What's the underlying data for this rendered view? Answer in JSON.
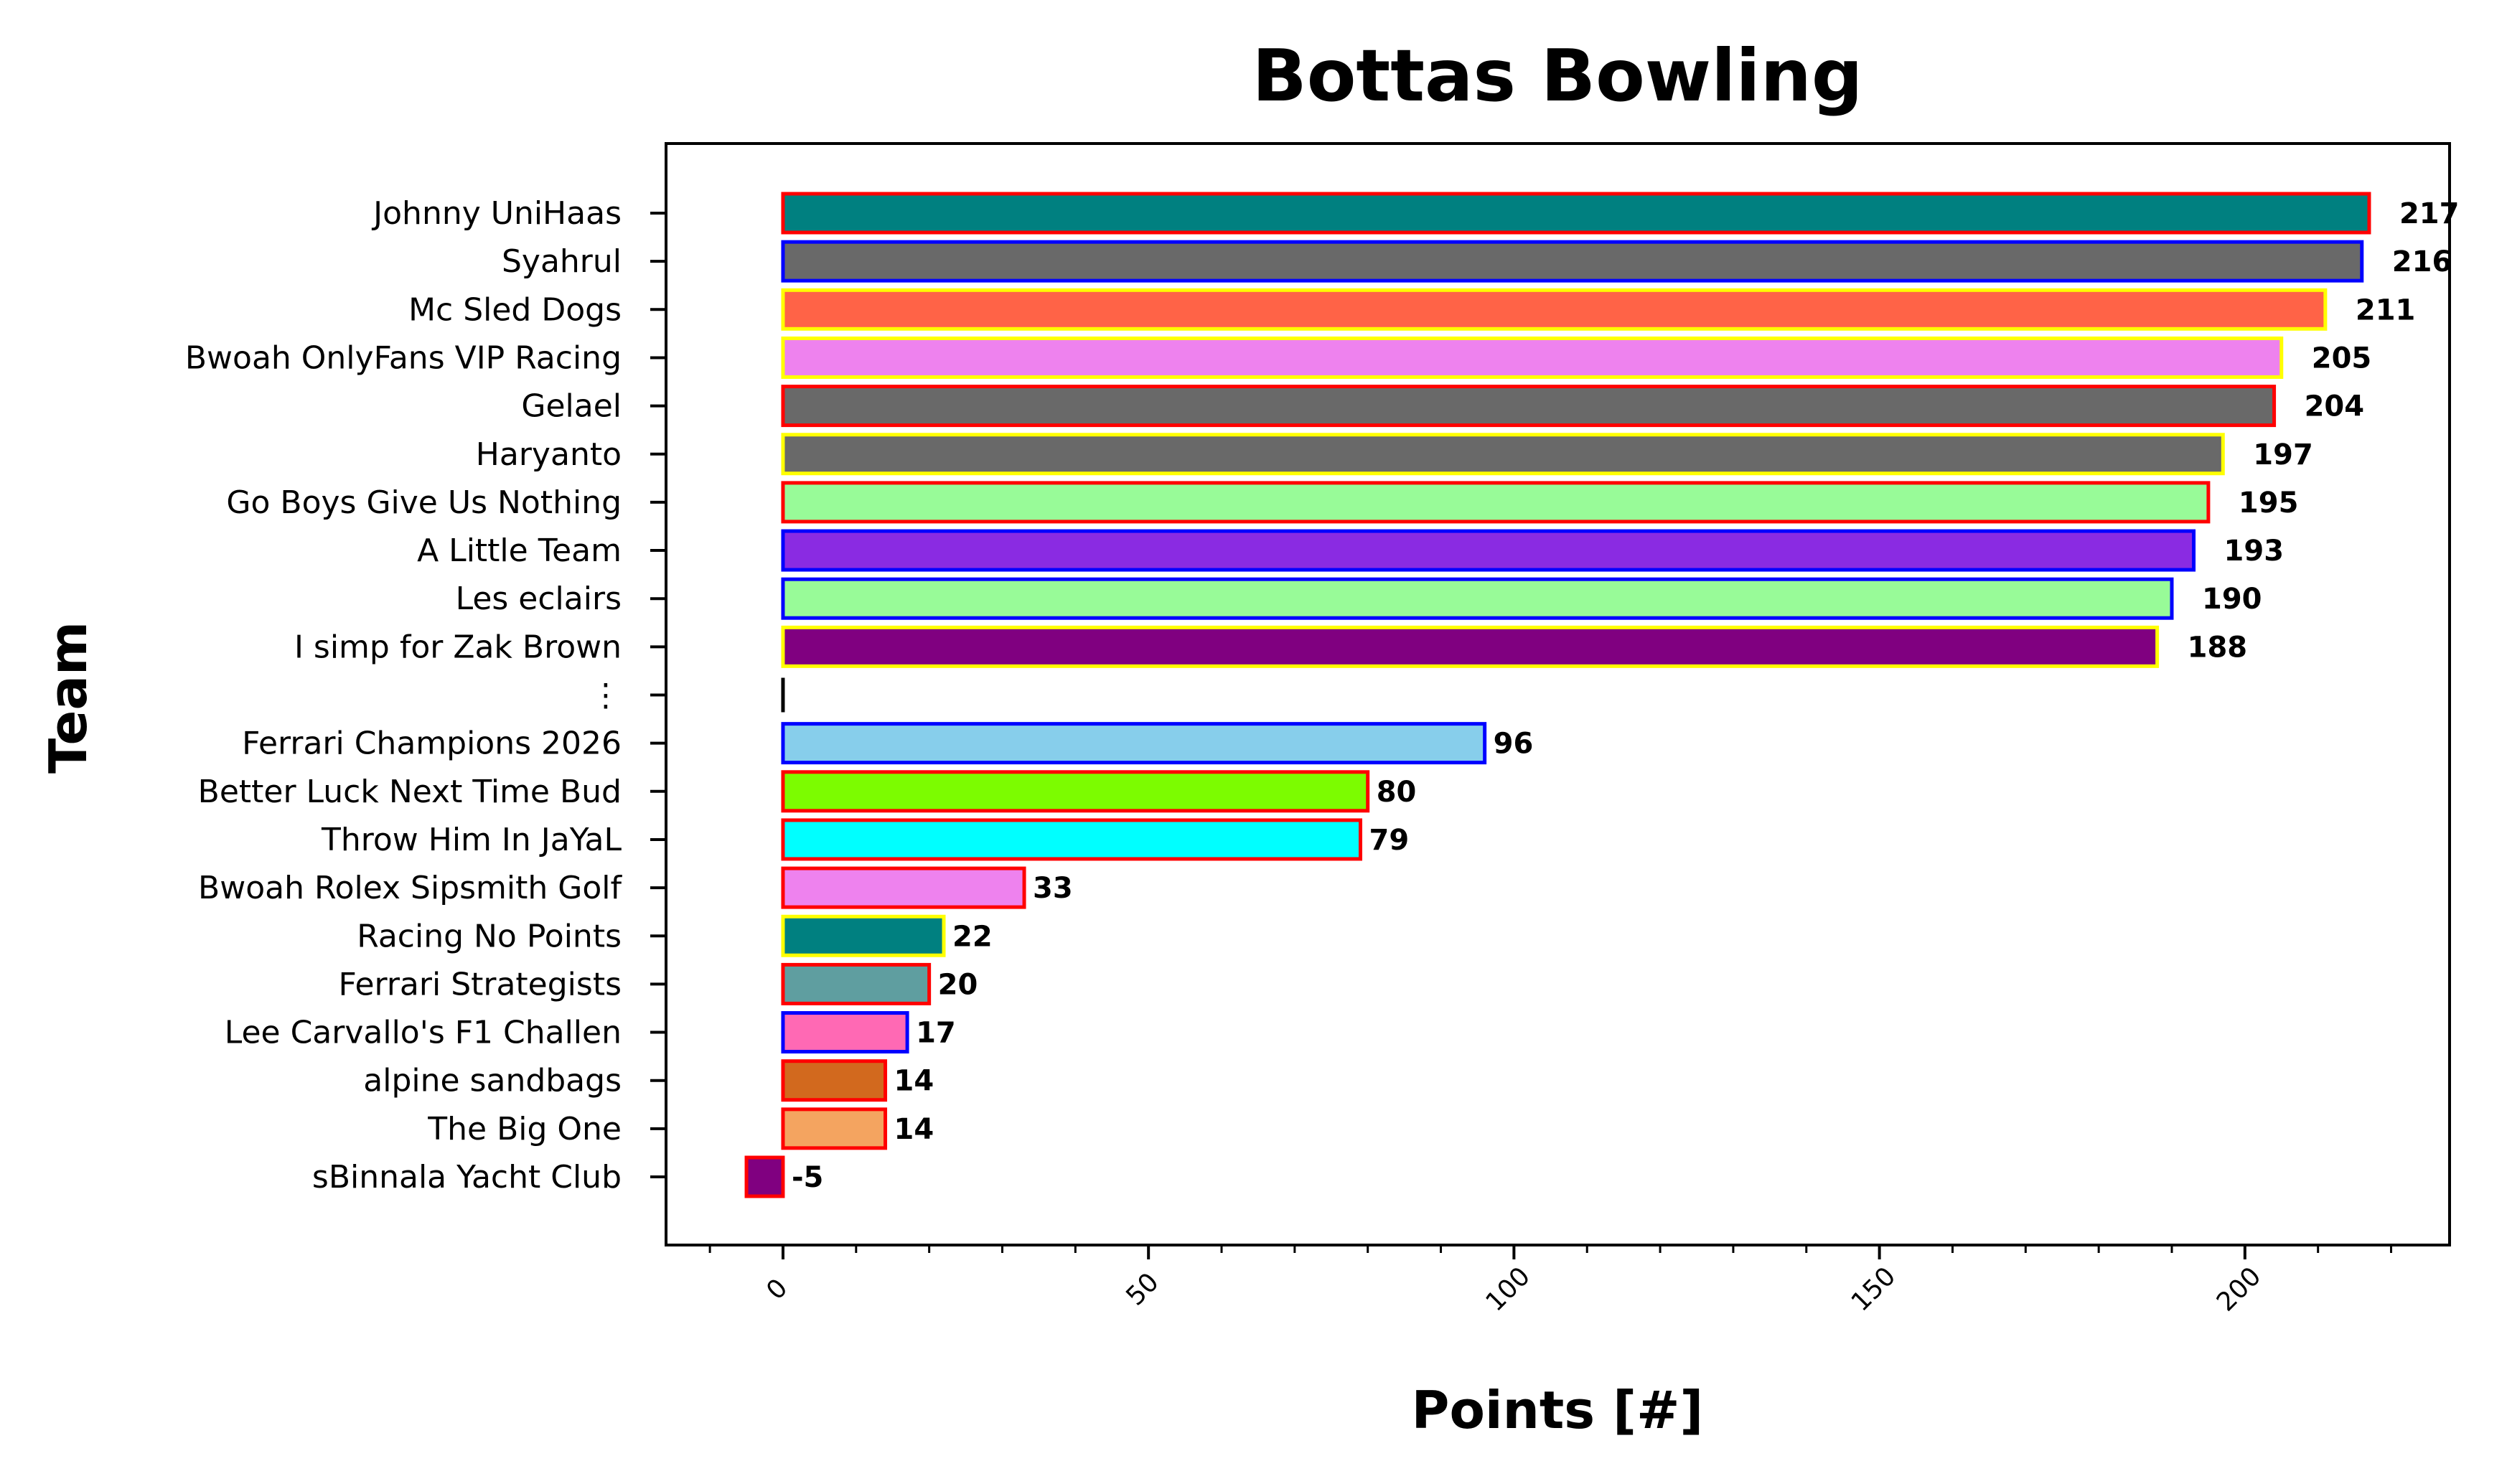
{
  "chart_data": {
    "type": "bar",
    "orientation": "horizontal",
    "title": "Bottas Bowling",
    "xlabel": "Points [#]",
    "ylabel": "Team",
    "xlim": [
      -16,
      228
    ],
    "xticks": [
      0,
      50,
      100,
      150,
      200
    ],
    "xtick_labels": [
      "0",
      "50",
      "100",
      "150",
      "200"
    ],
    "grid": false,
    "legend": "none",
    "bars": [
      {
        "team": "Johnny UniHaas",
        "value": 217,
        "label": "217",
        "fill": "#008080",
        "edge": "#ff0000"
      },
      {
        "team": "Syahrul",
        "value": 216,
        "label": "216",
        "fill": "#696969",
        "edge": "#0000ff"
      },
      {
        "team": "Mc Sled Dogs",
        "value": 211,
        "label": "211",
        "fill": "#ff6347",
        "edge": "#ffff00"
      },
      {
        "team": "Bwoah OnlyFans VIP Racing",
        "value": 205,
        "label": "205",
        "fill": "#ee82ee",
        "edge": "#ffff00"
      },
      {
        "team": "Gelael",
        "value": 204,
        "label": "204",
        "fill": "#696969",
        "edge": "#ff0000"
      },
      {
        "team": "Haryanto",
        "value": 197,
        "label": "197",
        "fill": "#696969",
        "edge": "#ffff00"
      },
      {
        "team": "Go Boys Give Us Nothing",
        "value": 195,
        "label": "195",
        "fill": "#98fb98",
        "edge": "#ff0000"
      },
      {
        "team": "A Little Team",
        "value": 193,
        "label": "193",
        "fill": "#8a2be2",
        "edge": "#0000ff"
      },
      {
        "team": "Les eclairs",
        "value": 190,
        "label": "190",
        "fill": "#98fb98",
        "edge": "#0000ff"
      },
      {
        "team": "I simp for Zak Brown",
        "value": 188,
        "label": "188",
        "fill": "#800080",
        "edge": "#ffff00"
      },
      {
        "team": "⋮",
        "value": 0,
        "label": "",
        "fill": "#000000",
        "edge": "#000000",
        "separator": true
      },
      {
        "team": "Ferrari Champions 2026",
        "value": 96,
        "label": "96",
        "fill": "#87ceeb",
        "edge": "#0000ff"
      },
      {
        "team": "Better Luck Next Time Bud",
        "value": 80,
        "label": "80",
        "fill": "#7cfc00",
        "edge": "#ff0000"
      },
      {
        "team": "Throw Him In JaYaL",
        "value": 79,
        "label": "79",
        "fill": "#00ffff",
        "edge": "#ff0000"
      },
      {
        "team": "Bwoah Rolex Sipsmith Golf",
        "value": 33,
        "label": "33",
        "fill": "#ee82ee",
        "edge": "#ff0000"
      },
      {
        "team": "Racing No Points",
        "value": 22,
        "label": "22",
        "fill": "#008080",
        "edge": "#ffff00"
      },
      {
        "team": "Ferrari Strategists",
        "value": 20,
        "label": "20",
        "fill": "#5f9ea0",
        "edge": "#ff0000"
      },
      {
        "team": "Lee Carvallo's F1 Challen",
        "value": 17,
        "label": "17",
        "fill": "#ff69b4",
        "edge": "#0000ff"
      },
      {
        "team": "alpine sandbags",
        "value": 14,
        "label": "14",
        "fill": "#d2691e",
        "edge": "#ff0000"
      },
      {
        "team": "The Big One",
        "value": 14,
        "label": "14",
        "fill": "#f4a460",
        "edge": "#ff0000"
      },
      {
        "team": "sBinnala Yacht Club",
        "value": -5,
        "label": "-5",
        "fill": "#800080",
        "edge": "#ff0000"
      }
    ]
  }
}
